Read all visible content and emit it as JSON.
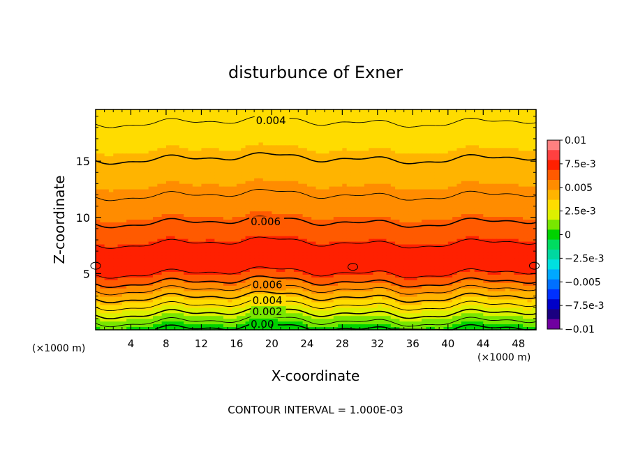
{
  "chart_data": {
    "type": "heatmap",
    "title": "disturbunce of Exner",
    "xlabel": "X-coordinate",
    "ylabel": "Z-coordinate",
    "x_unit_left": "(×1000 m)",
    "x_unit_right": "(×1000 m)",
    "footer": "CONTOUR INTERVAL = 1.000E-03",
    "xlim": [
      0,
      50
    ],
    "ylim": [
      0,
      19.6
    ],
    "x_ticks": [
      4,
      8,
      12,
      16,
      20,
      24,
      28,
      32,
      36,
      40,
      44,
      48
    ],
    "y_ticks": [
      5,
      10,
      15
    ],
    "grid": false,
    "field_profile": {
      "z": [
        0,
        0.5,
        1,
        1.5,
        2,
        2.5,
        3,
        3.5,
        4,
        4.5,
        5,
        5.5,
        6,
        6.5,
        7,
        7.5,
        8,
        9,
        10,
        11,
        12,
        13,
        14,
        15,
        16,
        17,
        18,
        19,
        19.6
      ],
      "value": [
        -0.0002,
        0.0006,
        0.0013,
        0.002,
        0.0027,
        0.0034,
        0.0041,
        0.0048,
        0.0056,
        0.0063,
        0.0069,
        0.0074,
        0.0077,
        0.0078,
        0.0076,
        0.0072,
        0.0068,
        0.0063,
        0.0058,
        0.0054,
        0.005,
        0.0047,
        0.0044,
        0.0041,
        0.0037,
        0.0034,
        0.0031,
        0.0029,
        0.0028
      ]
    },
    "contour_labels": [
      {
        "text": "0.004",
        "x": 18.2,
        "z": 18.6
      },
      {
        "text": "0.006",
        "x": 17.6,
        "z": 9.6
      },
      {
        "text": "0.006",
        "x": 17.8,
        "z": 4.0
      },
      {
        "text": "0.004",
        "x": 17.8,
        "z": 2.6
      },
      {
        "text": "0.002",
        "x": 17.8,
        "z": 1.6
      },
      {
        "text": "0.00",
        "x": 17.6,
        "z": 0.5
      }
    ],
    "colorbar": {
      "range": [
        -0.01,
        0.01
      ],
      "tick_labels": [
        "0.01",
        "7.5e-3",
        "0.005",
        "2.5e-3",
        "0",
        "-2.5e-3",
        "-0.005",
        "-7.5e-3",
        "-0.01"
      ],
      "colors": [
        "#ff8080",
        "#ff4040",
        "#ff2000",
        "#ff5a00",
        "#ff8c00",
        "#ffb400",
        "#ffdc00",
        "#dcf000",
        "#78e600",
        "#00d200",
        "#00dc60",
        "#00d8a0",
        "#00e0e0",
        "#00a8ff",
        "#0070ff",
        "#0030ff",
        "#0000c8",
        "#1a0080",
        "#7000a0"
      ]
    }
  }
}
